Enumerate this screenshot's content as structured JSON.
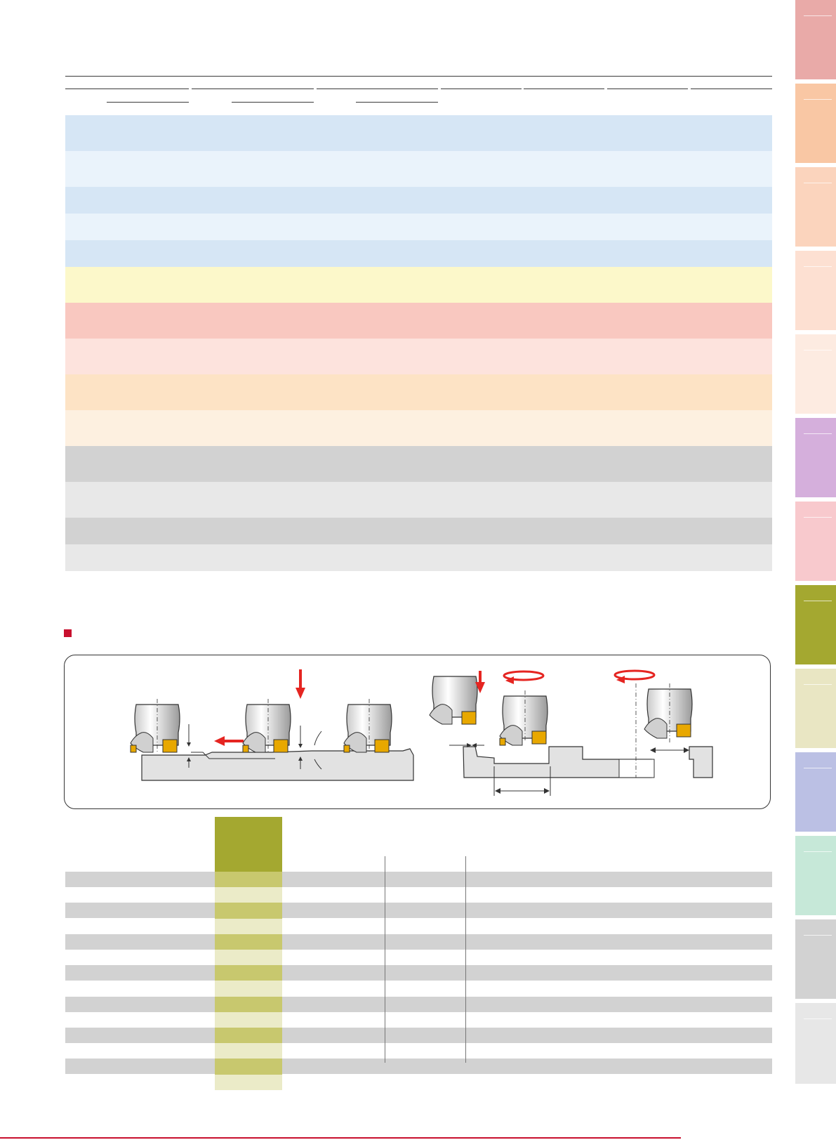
{
  "colors": {
    "accent_red": "#c8102e",
    "active_tab_olive": "#a4a830",
    "blue_dark": "#d6e6f5",
    "blue_light": "#eaf3fb",
    "yellow": "#fcf8ca",
    "red_dark": "#f9c8c0",
    "red_light": "#fde3dd",
    "orange_dark": "#fde3c5",
    "orange_light": "#fdf0e0",
    "gray_dark": "#d2d2d2",
    "gray_light": "#e8e8e8",
    "olive_cell_dark": "#c8c86e",
    "olive_cell_light": "#ebebc8",
    "arrow_red": "#e52521",
    "insert_gold": "#e8a800"
  },
  "side_tabs": [
    {
      "icon": "tab-a",
      "color": "#e9aaa8"
    },
    {
      "icon": "tab-b",
      "color": "#f9c7a4"
    },
    {
      "icon": "tab-c",
      "color": "#fbd4bd"
    },
    {
      "icon": "tab-d",
      "color": "#fde0d2"
    },
    {
      "icon": "tab-e",
      "color": "#fdebe1"
    },
    {
      "icon": "tab-f",
      "color": "#d5afdc"
    },
    {
      "icon": "tab-g",
      "color": "#f8c9cd"
    },
    {
      "icon": "tab-h",
      "color": "#a4a830"
    },
    {
      "icon": "tab-i",
      "color": "#e9e6c3"
    },
    {
      "icon": "tab-j",
      "color": "#bbc0e4"
    },
    {
      "icon": "tab-k",
      "color": "#c6e8d8"
    },
    {
      "icon": "tab-l",
      "color": "#d2d2d2"
    },
    {
      "icon": "tab-m",
      "color": "#e7e7e7"
    }
  ],
  "upper_table": {
    "bands": [
      {
        "group": "blue",
        "shade": "dark",
        "label": ""
      },
      {
        "group": "blue",
        "shade": "light",
        "label": ""
      },
      {
        "group": "blue",
        "shade": "dark",
        "label": ""
      },
      {
        "group": "blue",
        "shade": "light",
        "label": ""
      },
      {
        "group": "blue",
        "shade": "dark",
        "label": ""
      },
      {
        "group": "yellow",
        "shade": "single",
        "label": ""
      },
      {
        "group": "red",
        "shade": "dark",
        "label": ""
      },
      {
        "group": "red",
        "shade": "light",
        "label": ""
      },
      {
        "group": "orange",
        "shade": "dark",
        "label": ""
      },
      {
        "group": "orange",
        "shade": "light",
        "label": ""
      },
      {
        "group": "gray",
        "shade": "dark",
        "label": ""
      },
      {
        "group": "gray",
        "shade": "light",
        "label": ""
      },
      {
        "group": "gray",
        "shade": "dark",
        "label": ""
      },
      {
        "group": "gray",
        "shade": "light",
        "label": ""
      }
    ]
  },
  "diagram_section": {
    "title": "",
    "square_icon": "section-marker-icon"
  },
  "lower_table": {
    "rows": [
      {
        "shade": "dark"
      },
      {
        "shade": "light"
      },
      {
        "shade": "dark"
      },
      {
        "shade": "light"
      },
      {
        "shade": "dark"
      },
      {
        "shade": "light"
      },
      {
        "shade": "dark"
      },
      {
        "shade": "light"
      },
      {
        "shade": "dark"
      },
      {
        "shade": "light"
      },
      {
        "shade": "dark"
      },
      {
        "shade": "light"
      },
      {
        "shade": "dark"
      },
      {
        "shade": "light"
      }
    ]
  }
}
